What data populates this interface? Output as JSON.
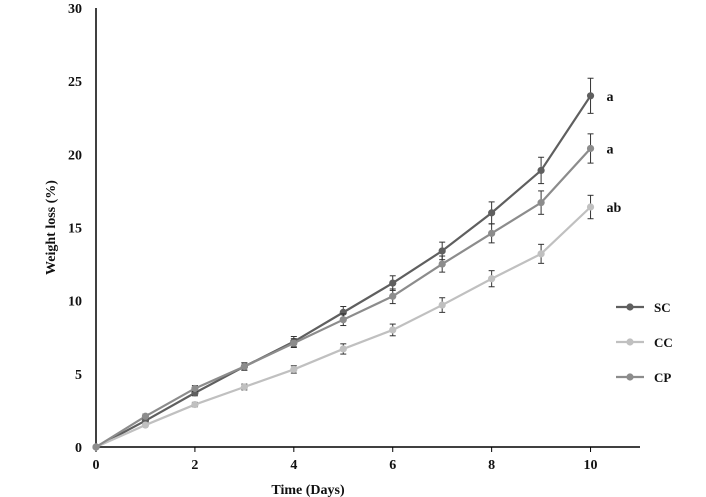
{
  "chart_data": {
    "type": "line",
    "title": "",
    "xlabel": "Time (Days)",
    "ylabel": "Weight loss (%)",
    "xlim": [
      0,
      11
    ],
    "ylim": [
      0,
      30
    ],
    "x_ticks": [
      0,
      2,
      4,
      6,
      8,
      10
    ],
    "y_ticks": [
      0,
      5,
      10,
      15,
      20,
      25,
      30
    ],
    "grid": false,
    "legend_position": "right",
    "x": [
      0,
      1,
      2,
      3,
      4,
      5,
      6,
      7,
      8,
      9,
      10
    ],
    "series": [
      {
        "name": "SC",
        "color": "#5f5f5f",
        "values": [
          0,
          1.8,
          3.7,
          5.5,
          7.2,
          9.2,
          11.2,
          13.4,
          16.0,
          18.9,
          24.0
        ],
        "errors": [
          0,
          0.15,
          0.2,
          0.25,
          0.35,
          0.4,
          0.5,
          0.6,
          0.75,
          0.9,
          1.2
        ]
      },
      {
        "name": "CC",
        "color": "#c0c0c0",
        "values": [
          0,
          1.5,
          2.9,
          4.1,
          5.3,
          6.7,
          8.0,
          9.7,
          11.5,
          13.2,
          16.4
        ],
        "errors": [
          0,
          0.1,
          0.15,
          0.2,
          0.25,
          0.35,
          0.4,
          0.5,
          0.55,
          0.65,
          0.8
        ]
      },
      {
        "name": "CP",
        "color": "#8c8c8c",
        "values": [
          0,
          2.1,
          4.0,
          5.5,
          7.1,
          8.7,
          10.3,
          12.5,
          14.6,
          16.7,
          20.4
        ],
        "errors": [
          0,
          0.15,
          0.2,
          0.25,
          0.3,
          0.4,
          0.5,
          0.55,
          0.65,
          0.8,
          1.0
        ]
      }
    ],
    "annotations": [
      {
        "series": "SC",
        "text": "a"
      },
      {
        "series": "CP",
        "text": "a"
      },
      {
        "series": "CC",
        "text": "ab"
      }
    ]
  }
}
